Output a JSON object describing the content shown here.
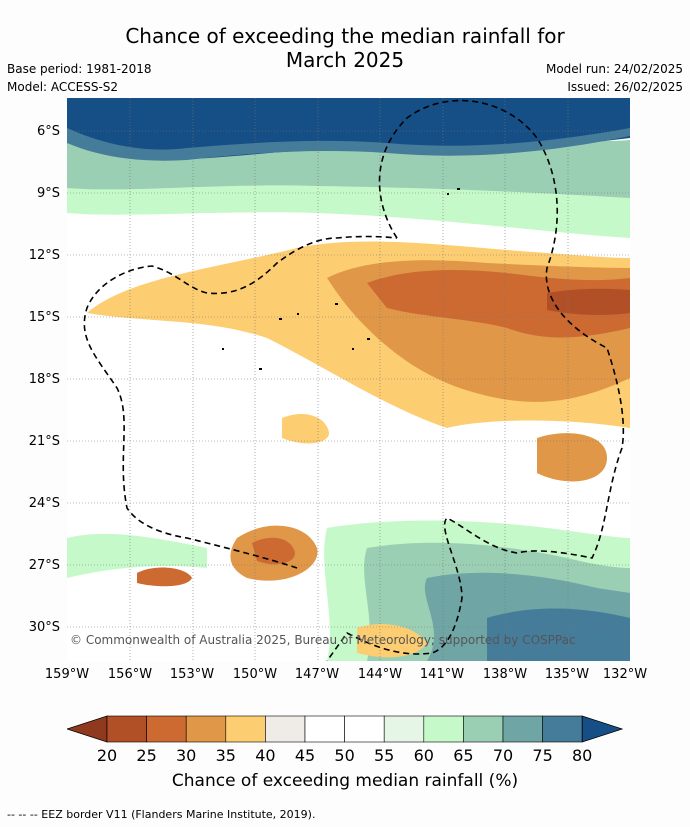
{
  "title_line1": "Chance of exceeding the median rainfall for",
  "title_line2": "March 2025",
  "base_period": "Base period: 1981-2018",
  "model": "Model: ACCESS-S2",
  "model_run": "Model run: 24/02/2025",
  "issued": "Issued: 26/02/2025",
  "lat_labels": [
    "6°S",
    "9°S",
    "12°S",
    "15°S",
    "18°S",
    "21°S",
    "24°S",
    "27°S",
    "30°S"
  ],
  "lon_labels": [
    "159°W",
    "156°W",
    "153°W",
    "150°W",
    "147°W",
    "144°W",
    "141°W",
    "138°W",
    "135°W",
    "132°W"
  ],
  "copyright": "© Commonwealth of Australia 2025, Bureau of Meteorology; supported by COSPPac",
  "colorbar": {
    "labels": [
      "20",
      "25",
      "30",
      "35",
      "40",
      "45",
      "50",
      "55",
      "60",
      "65",
      "70",
      "75",
      "80"
    ],
    "colors": [
      "#8f3a1e",
      "#b14f27",
      "#cc6a32",
      "#e09848",
      "#fdcd72",
      "#efebe7",
      "#ffffff",
      "#ffffff",
      "#e6f6e6",
      "#c6f9c9",
      "#9bcfb4",
      "#6fa5a4",
      "#457c9a",
      "#154f86"
    ],
    "title": "Chance of exceeding median rainfall (%)"
  },
  "footnote": "-- -- -- EEZ border V11 (Flanders Marine Institute, 2019)."
}
